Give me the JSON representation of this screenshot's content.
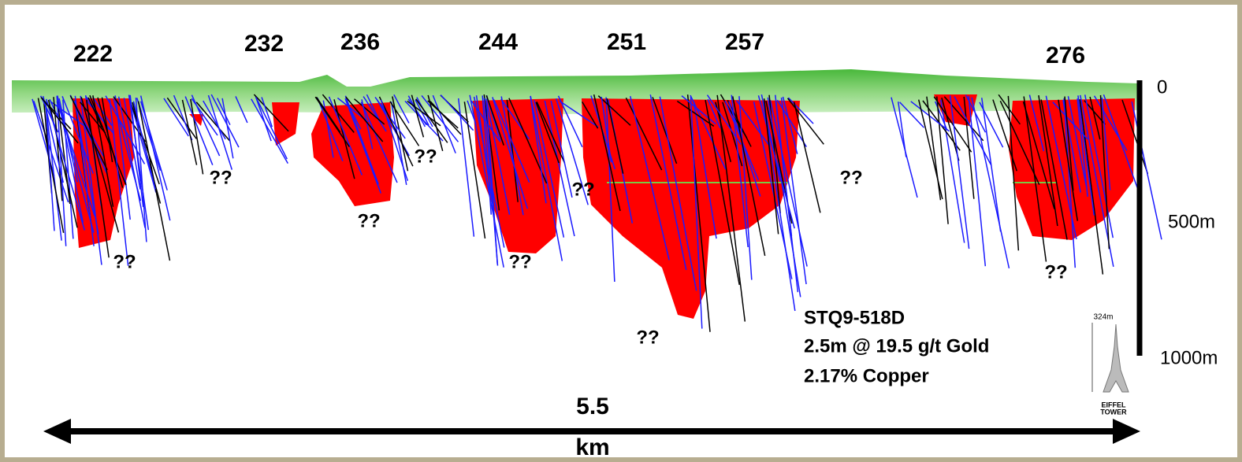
{
  "deposits": [
    "222",
    "232",
    "236",
    "244",
    "251",
    "257",
    "276"
  ],
  "unknowns": [
    "??",
    "??",
    "??",
    "??",
    "??",
    "??",
    "??",
    "??",
    "??"
  ],
  "depth_scale": {
    "top": "0",
    "middle": "500m",
    "bottom": "1000m"
  },
  "intercept": {
    "hole": "STQ9-518D",
    "grade": "2.5m @ 19.5 g/t Gold",
    "copper": "2.17% Copper"
  },
  "width_scale": {
    "value": "5.5",
    "unit": "km"
  },
  "eiffel_tower": {
    "height": "324m",
    "name_line1": "EIFFEL",
    "name_line2": "TOWER"
  }
}
